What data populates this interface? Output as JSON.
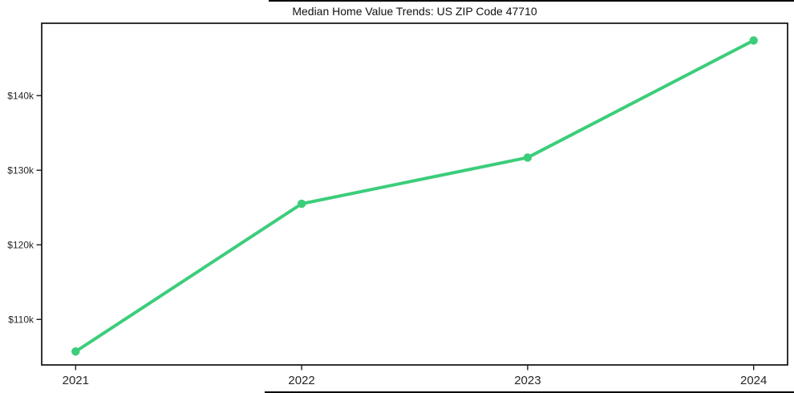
{
  "chart_data": {
    "type": "line",
    "title": "Median Home Value Trends: US ZIP Code 47710",
    "categories": [
      "2021",
      "2022",
      "2023",
      "2024"
    ],
    "series": [
      {
        "name": "Median home value",
        "values": [
          105700,
          125500,
          131700,
          147400
        ],
        "color": "#3ccd7b",
        "marker": "circle"
      }
    ],
    "yticks": [
      {
        "value": 110000,
        "label": "$110k"
      },
      {
        "value": 120000,
        "label": "$120k"
      },
      {
        "value": 130000,
        "label": "$130k"
      },
      {
        "value": 140000,
        "label": "$140k"
      }
    ],
    "ylim": [
      103900,
      149700
    ],
    "xlabel": "",
    "ylabel": "",
    "grid": false,
    "legend_position": "none"
  },
  "colors": {
    "line": "#3ccd7b",
    "spine": "#1c1c1c",
    "tick_text": "#262626",
    "title_text": "#111111",
    "background": "#ffffff"
  }
}
